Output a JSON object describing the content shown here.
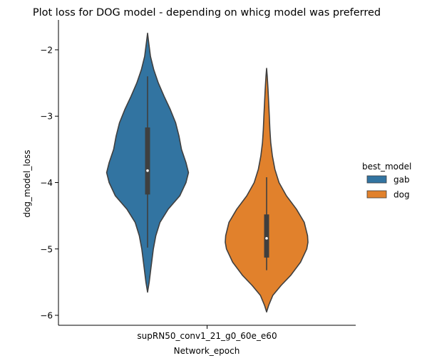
{
  "chart_data": {
    "type": "violin",
    "title": "Plot loss for DOG model - depending on whicg model was preferred",
    "xlabel": "Network_epoch",
    "ylabel": "dog_model_loss",
    "categories": [
      "supRN50_conv1_21_g0_60e_e60"
    ],
    "ylim": [
      -6.15,
      -1.55
    ],
    "yticks": [
      -6,
      -5,
      -4,
      -3,
      -2
    ],
    "ytick_labels": [
      "−6",
      "−5",
      "−4",
      "−3",
      "−2"
    ],
    "grid": false,
    "legend": {
      "title": "best_model",
      "placement": "right",
      "entries": [
        "gab",
        "dog"
      ]
    },
    "series": [
      {
        "name": "gab",
        "color": "#3274a1",
        "min": -5.65,
        "max": -1.75,
        "whisker_low": -4.98,
        "whisker_high": -2.4,
        "q1": -4.18,
        "median": -3.82,
        "q3": -3.17,
        "profile": [
          [
            -5.65,
            0.0
          ],
          [
            -5.5,
            0.04
          ],
          [
            -5.3,
            0.08
          ],
          [
            -5.0,
            0.14
          ],
          [
            -4.8,
            0.2
          ],
          [
            -4.6,
            0.3
          ],
          [
            -4.4,
            0.5
          ],
          [
            -4.2,
            0.78
          ],
          [
            -4.0,
            0.93
          ],
          [
            -3.85,
            0.99
          ],
          [
            -3.7,
            0.93
          ],
          [
            -3.5,
            0.82
          ],
          [
            -3.3,
            0.76
          ],
          [
            -3.1,
            0.68
          ],
          [
            -2.9,
            0.55
          ],
          [
            -2.7,
            0.4
          ],
          [
            -2.5,
            0.26
          ],
          [
            -2.3,
            0.15
          ],
          [
            -2.1,
            0.07
          ],
          [
            -1.9,
            0.03
          ],
          [
            -1.75,
            0.0
          ]
        ]
      },
      {
        "name": "dog",
        "color": "#e1812c",
        "min": -5.95,
        "max": -2.28,
        "whisker_low": -5.32,
        "whisker_high": -3.92,
        "q1": -5.13,
        "median": -4.84,
        "q3": -4.48,
        "profile": [
          [
            -5.95,
            0.0
          ],
          [
            -5.85,
            0.05
          ],
          [
            -5.7,
            0.15
          ],
          [
            -5.55,
            0.35
          ],
          [
            -5.4,
            0.58
          ],
          [
            -5.2,
            0.82
          ],
          [
            -5.0,
            0.97
          ],
          [
            -4.9,
            1.0
          ],
          [
            -4.8,
            0.99
          ],
          [
            -4.6,
            0.91
          ],
          [
            -4.4,
            0.72
          ],
          [
            -4.2,
            0.48
          ],
          [
            -4.0,
            0.3
          ],
          [
            -3.8,
            0.2
          ],
          [
            -3.6,
            0.14
          ],
          [
            -3.4,
            0.1
          ],
          [
            -3.2,
            0.08
          ],
          [
            -3.0,
            0.065
          ],
          [
            -2.8,
            0.05
          ],
          [
            -2.6,
            0.035
          ],
          [
            -2.4,
            0.015
          ],
          [
            -2.28,
            0.0
          ]
        ]
      }
    ]
  }
}
